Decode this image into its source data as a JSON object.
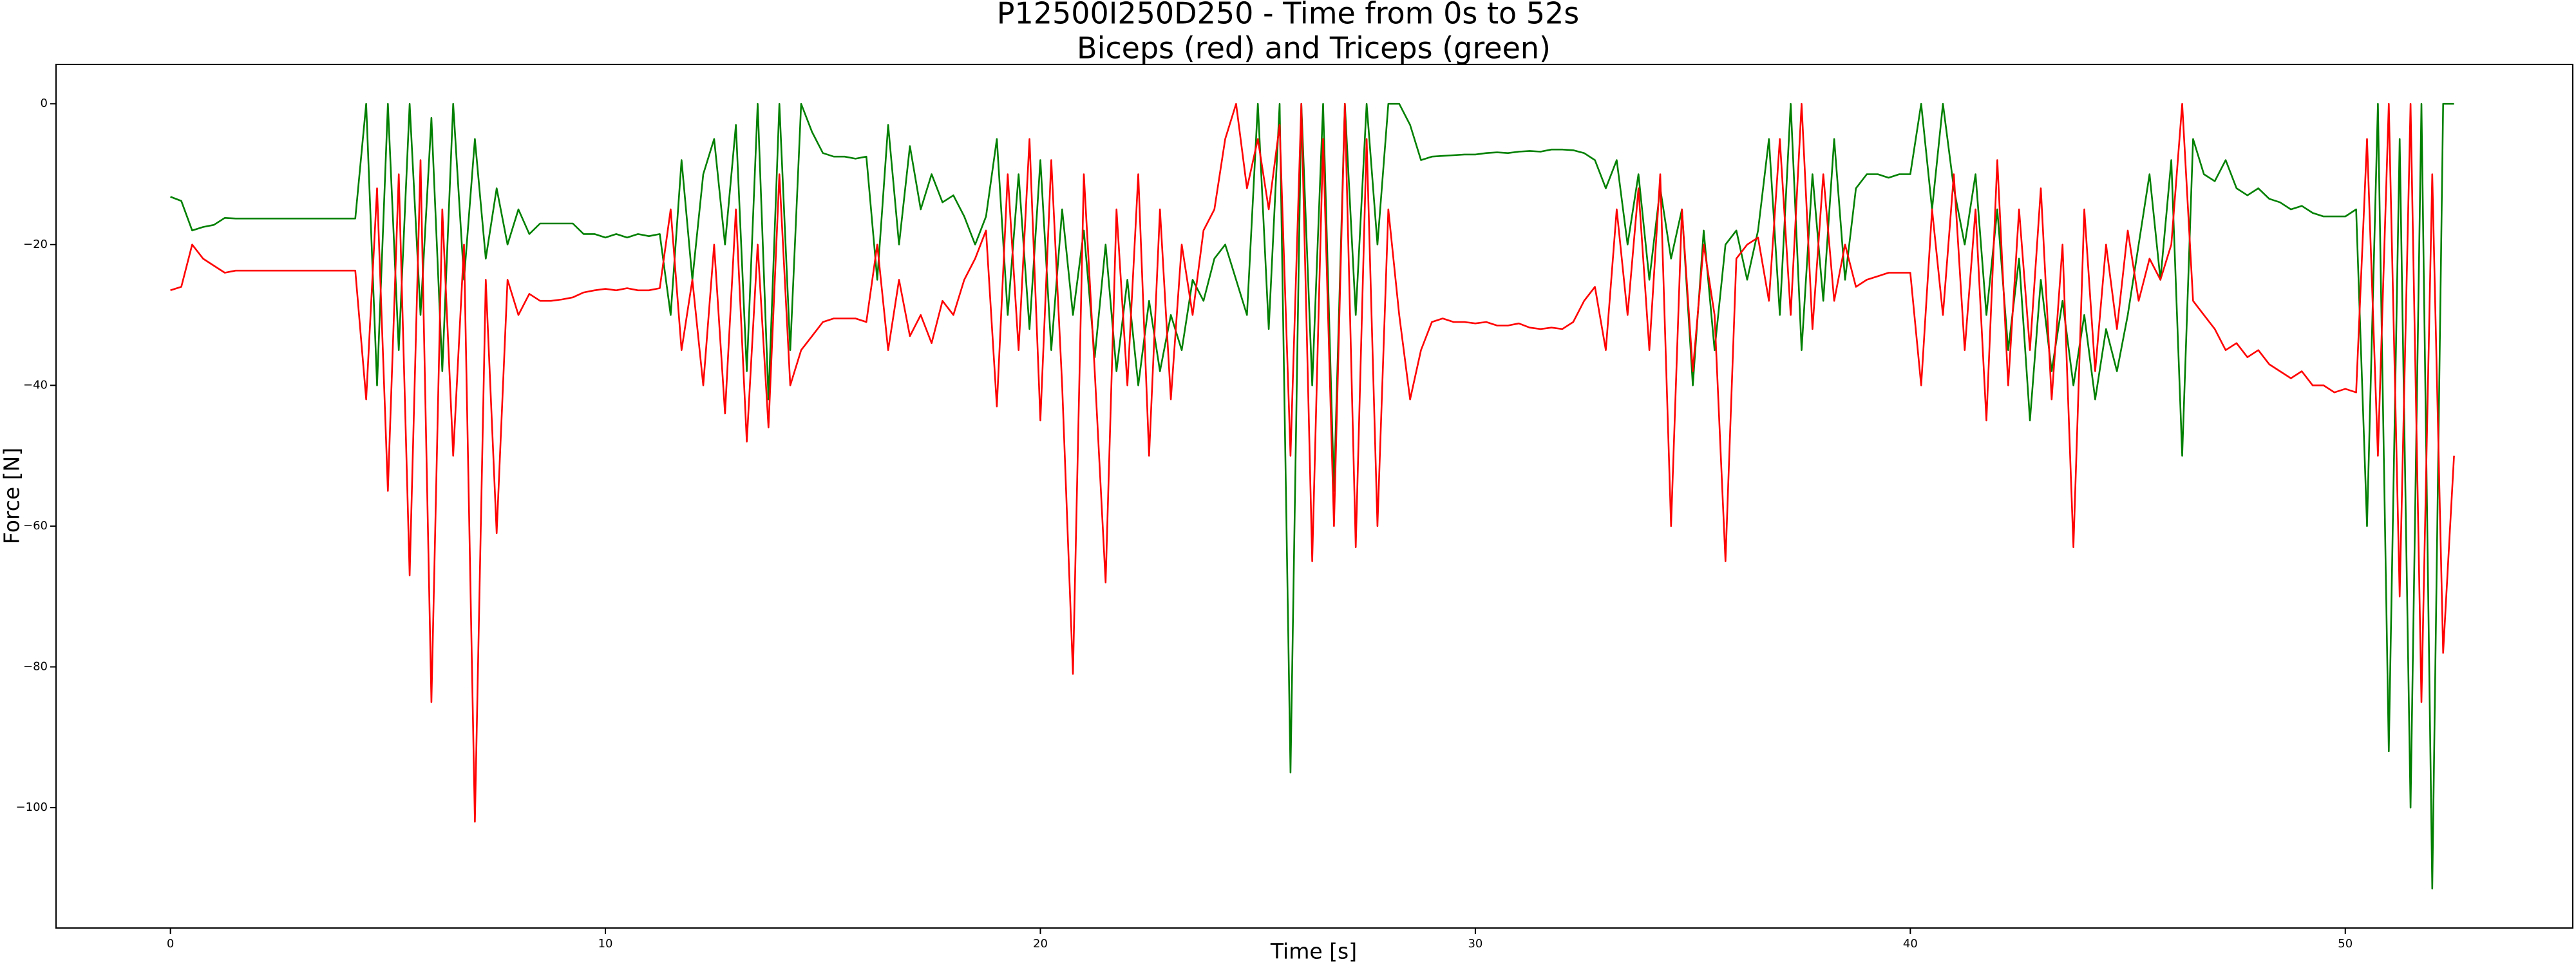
{
  "chart_data": {
    "type": "line",
    "title": "P12500I250D250 - Time from 0s to 52s",
    "subtitle": "Biceps (red) and Triceps (green)",
    "x_label": "Time [s]",
    "y_label": "Force [N]",
    "xlim": [
      -2.63,
      55.23
    ],
    "ylim": [
      -117.1,
      5.6
    ],
    "xticks": [
      0,
      10,
      20,
      30,
      40,
      50
    ],
    "yticks": [
      0,
      {
        "value": -20,
        "label": "−20"
      },
      {
        "value": -40,
        "label": "−40"
      },
      {
        "value": -60,
        "label": "−60"
      },
      {
        "value": -80,
        "label": "−80"
      },
      {
        "value": -100,
        "label": "−100"
      }
    ],
    "grid": false,
    "x": [
      0,
      0.25,
      0.5,
      0.75,
      1,
      1.25,
      1.5,
      1.75,
      2,
      2.25,
      2.5,
      2.75,
      3,
      3.25,
      3.5,
      3.75,
      4,
      4.25,
      4.5,
      4.75,
      5,
      5.25,
      5.5,
      5.75,
      6,
      6.25,
      6.5,
      6.75,
      7,
      7.25,
      7.5,
      7.75,
      8,
      8.25,
      8.5,
      8.75,
      9,
      9.25,
      9.5,
      9.75,
      10,
      10.25,
      10.5,
      10.75,
      11,
      11.25,
      11.5,
      11.75,
      12,
      12.25,
      12.5,
      12.75,
      13,
      13.25,
      13.5,
      13.75,
      14,
      14.25,
      14.5,
      14.75,
      15,
      15.25,
      15.5,
      15.75,
      16,
      16.25,
      16.5,
      16.75,
      17,
      17.25,
      17.5,
      17.75,
      18,
      18.25,
      18.5,
      18.75,
      19,
      19.25,
      19.5,
      19.75,
      20,
      20.25,
      20.5,
      20.75,
      21,
      21.25,
      21.5,
      21.75,
      22,
      22.25,
      22.5,
      22.75,
      23,
      23.25,
      23.5,
      23.75,
      24,
      24.25,
      24.5,
      24.75,
      25,
      25.25,
      25.5,
      25.75,
      26,
      26.25,
      26.5,
      26.75,
      27,
      27.25,
      27.5,
      27.75,
      28,
      28.25,
      28.5,
      28.75,
      29,
      29.25,
      29.5,
      29.75,
      30,
      30.25,
      30.5,
      30.75,
      31,
      31.25,
      31.5,
      31.75,
      32,
      32.25,
      32.5,
      32.75,
      33,
      33.25,
      33.5,
      33.75,
      34,
      34.25,
      34.5,
      34.75,
      35,
      35.25,
      35.5,
      35.75,
      36,
      36.25,
      36.5,
      36.75,
      37,
      37.25,
      37.5,
      37.75,
      38,
      38.25,
      38.5,
      38.75,
      39,
      39.25,
      39.5,
      39.75,
      40,
      40.25,
      40.5,
      40.75,
      41,
      41.25,
      41.5,
      41.75,
      42,
      42.25,
      42.5,
      42.75,
      43,
      43.25,
      43.5,
      43.75,
      44,
      44.25,
      44.5,
      44.75,
      45,
      45.25,
      45.5,
      45.75,
      46,
      46.25,
      46.5,
      46.75,
      47,
      47.25,
      47.5,
      47.75,
      48,
      48.25,
      48.5,
      48.75,
      49,
      49.25,
      49.5,
      49.75,
      50,
      50.25,
      50.5,
      50.75,
      51,
      51.25,
      51.5,
      51.75,
      52,
      52.25,
      52.5
    ],
    "series": [
      {
        "name": "Triceps",
        "color": "#008000",
        "values": [
          -13.2,
          -13.8,
          -18,
          -17.5,
          -17.2,
          -16.2,
          -16.3,
          -16.3,
          -16.3,
          -16.3,
          -16.3,
          -16.3,
          -16.3,
          -16.3,
          -16.3,
          -16.3,
          -16.3,
          -16.3,
          0,
          -40,
          0,
          -35,
          0,
          -30,
          -2,
          -38,
          0,
          -25,
          -5,
          -22,
          -12,
          -20,
          -15,
          -18.5,
          -17,
          -17,
          -17,
          -17,
          -18.5,
          -18.5,
          -19,
          -18.5,
          -19,
          -18.5,
          -18.8,
          -18.5,
          -30,
          -8,
          -25,
          -10,
          -5,
          -20,
          -3,
          -38,
          0,
          -42,
          0,
          -35,
          0,
          -4,
          -7,
          -7.5,
          -7.5,
          -7.8,
          -7.5,
          -25,
          -3,
          -20,
          -6,
          -15,
          -10,
          -14,
          -13,
          -16,
          -20,
          -16,
          -5,
          -30,
          -10,
          -32,
          -8,
          -35,
          -15,
          -30,
          -18,
          -36,
          -20,
          -38,
          -25,
          -40,
          -28,
          -38,
          -30,
          -35,
          -25,
          -28,
          -22,
          -20,
          -25,
          -30,
          0,
          -32,
          0,
          -95,
          0,
          -40,
          0,
          -55,
          0,
          -30,
          0,
          -20,
          0,
          0,
          -3,
          -8,
          -7.5,
          -7.4,
          -7.3,
          -7.2,
          -7.2,
          -7,
          -6.9,
          -7,
          -6.8,
          -6.7,
          -6.8,
          -6.5,
          -6.5,
          -6.6,
          -7,
          -8,
          -12,
          -8,
          -20,
          -10,
          -25,
          -12,
          -22,
          -15,
          -40,
          -18,
          -35,
          -20,
          -18,
          -25,
          -18,
          -5,
          -30,
          0,
          -35,
          -10,
          -28,
          -5,
          -25,
          -12,
          -10,
          -10,
          -10.5,
          -10,
          -10,
          0,
          -15,
          0,
          -12,
          -20,
          -10,
          -30,
          -15,
          -35,
          -22,
          -45,
          -25,
          -38,
          -28,
          -40,
          -30,
          -42,
          -32,
          -38,
          -30,
          -20,
          -10,
          -25,
          -8,
          -50,
          -5,
          -10,
          -11,
          -8,
          -12,
          -13,
          -12,
          -13.5,
          -14,
          -15,
          -14.5,
          -15.5,
          -16,
          -16,
          -16,
          -15,
          -60,
          0,
          -92,
          -5,
          -100,
          0,
          -111.5,
          0,
          0
        ]
      },
      {
        "name": "Biceps",
        "color": "#ff0000",
        "values": [
          -26.5,
          -26,
          -20,
          -22,
          -23,
          -24,
          -23.7,
          -23.7,
          -23.7,
          -23.7,
          -23.7,
          -23.7,
          -23.7,
          -23.7,
          -23.7,
          -23.7,
          -23.7,
          -23.7,
          -42,
          -12,
          -55,
          -10,
          -67,
          -8,
          -85,
          -15,
          -50,
          -20,
          -102,
          -25,
          -61,
          -25,
          -30,
          -27,
          -28,
          -28,
          -27.8,
          -27.5,
          -26.8,
          -26.5,
          -26.3,
          -26.5,
          -26.2,
          -26.5,
          -26.5,
          -26.2,
          -15,
          -35,
          -25,
          -40,
          -20,
          -44,
          -15,
          -48,
          -20,
          -46,
          -10,
          -40,
          -35,
          -33,
          -31,
          -30.5,
          -30.5,
          -30.5,
          -31,
          -20,
          -35,
          -25,
          -33,
          -30,
          -34,
          -28,
          -30,
          -25,
          -22,
          -18,
          -43,
          -10,
          -35,
          -5,
          -45,
          -8,
          -40,
          -81,
          -10,
          -38,
          -68,
          -15,
          -40,
          -10,
          -50,
          -15,
          -42,
          -20,
          -30,
          -18,
          -15,
          -5,
          0,
          -12,
          -5,
          -15,
          -3,
          -50,
          0,
          -65,
          -5,
          -60,
          0,
          -63,
          -5,
          -60,
          -15,
          -30,
          -42,
          -35,
          -31,
          -30.5,
          -31,
          -31,
          -31.2,
          -31,
          -31.5,
          -31.5,
          -31.2,
          -31.8,
          -32,
          -31.8,
          -32,
          -31,
          -28,
          -26,
          -35,
          -15,
          -30,
          -12,
          -35,
          -10,
          -60,
          -15,
          -38,
          -20,
          -30,
          -65,
          -22,
          -20,
          -19,
          -28,
          -5,
          -30,
          0,
          -32,
          -10,
          -28,
          -20,
          -26,
          -25,
          -24.5,
          -24,
          -24,
          -24,
          -40,
          -15,
          -30,
          -10,
          -35,
          -15,
          -45,
          -8,
          -40,
          -15,
          -35,
          -12,
          -42,
          -20,
          -63,
          -15,
          -38,
          -20,
          -32,
          -18,
          -28,
          -22,
          -25,
          -20,
          0,
          -28,
          -30,
          -32,
          -35,
          -34,
          -36,
          -35,
          -37,
          -38,
          -39,
          -38,
          -40,
          -40,
          -41,
          -40.5,
          -41,
          -5,
          -50,
          0,
          -70,
          0,
          -85,
          -10,
          -78,
          -50
        ]
      }
    ]
  }
}
